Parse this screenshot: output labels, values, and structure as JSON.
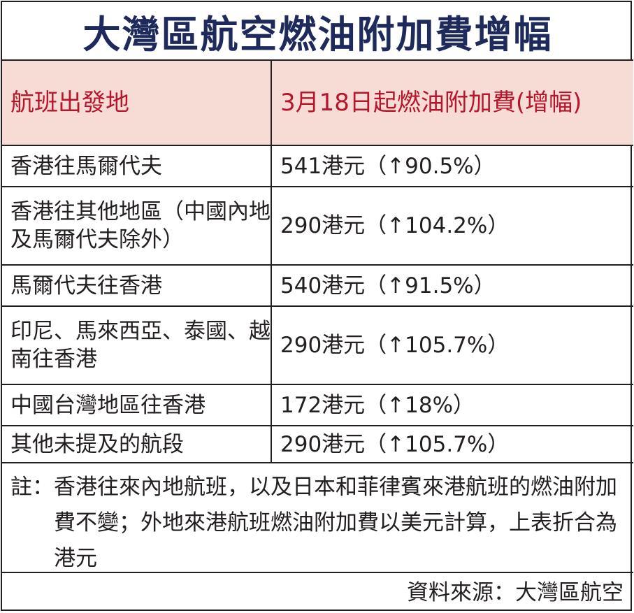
{
  "title": "大灣區航空燃油附加費增幅",
  "header": {
    "col_origin": "航班出發地",
    "col_surcharge": "3月18日起燃油附加費(增幅)"
  },
  "rows": [
    {
      "origin": "香港往馬爾代夫",
      "surcharge": "541港元（↑90.5%）"
    },
    {
      "origin": "香港往其他地區（中國內地及馬爾代夫除外）",
      "surcharge": "290港元（↑104.2%）"
    },
    {
      "origin": "馬爾代夫往香港",
      "surcharge": "540港元（↑91.5%）"
    },
    {
      "origin": "印尼、馬來西亞、泰國、越南往香港",
      "surcharge": "290港元（↑105.7%）"
    },
    {
      "origin": "中國台灣地區往香港",
      "surcharge": "172港元（↑18%）"
    },
    {
      "origin": "其他未提及的航段",
      "surcharge": "290港元（↑105.7%）"
    }
  ],
  "note": {
    "label": "註：",
    "text": "香港往來內地航班，以及日本和菲律賓來港航班的燃油附加費不變；外地來港航班燃油附加費以美元計算，上表折合為港元"
  },
  "source": "資料來源：大灣區航空",
  "colors": {
    "title": "#1f2a5c",
    "header_text": "#b5162c",
    "header_bg": "#f6dcd4",
    "rule": "#231f20"
  }
}
